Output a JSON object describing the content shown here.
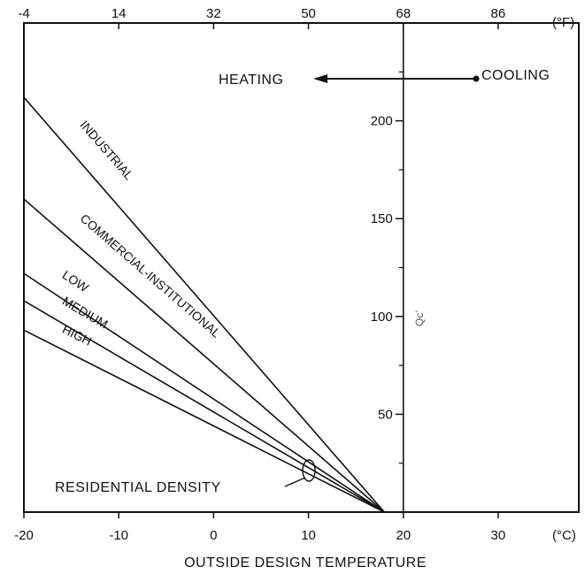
{
  "chart_data": {
    "type": "line",
    "xlabel": "OUTSIDE DESIGN TEMPERATURE",
    "x_unit": "(°C)",
    "x_ticks": [
      "-20",
      "-10",
      "0",
      "10",
      "20",
      "30"
    ],
    "xlim": [
      -20,
      38.5
    ],
    "top_axis_unit": "(°F)",
    "top_ticks": [
      "-4",
      "14",
      "32",
      "50",
      "68",
      "86"
    ],
    "y_ticks": [
      "50",
      "100",
      "150",
      "200"
    ],
    "ylim": [
      0,
      250
    ],
    "ylabel_marker": "Qc’",
    "series": [
      {
        "name": "INDUSTRIAL",
        "x": [
          -20,
          18
        ],
        "y": [
          212,
          0
        ]
      },
      {
        "name": "COMMERCIAL-INSTITUTIONAL",
        "x": [
          -20,
          18
        ],
        "y": [
          160,
          0
        ]
      },
      {
        "name": "LOW",
        "x": [
          -20,
          18
        ],
        "y": [
          122,
          0
        ]
      },
      {
        "name": "MEDIUM",
        "x": [
          -20,
          18
        ],
        "y": [
          108,
          0
        ]
      },
      {
        "name": "HIGH",
        "x": [
          -20,
          18
        ],
        "y": [
          93,
          0
        ]
      }
    ],
    "annotations": {
      "heating": "HEATING",
      "cooling": "COOLING",
      "residential": "RESIDENTIAL DENSITY"
    },
    "grid": false
  }
}
